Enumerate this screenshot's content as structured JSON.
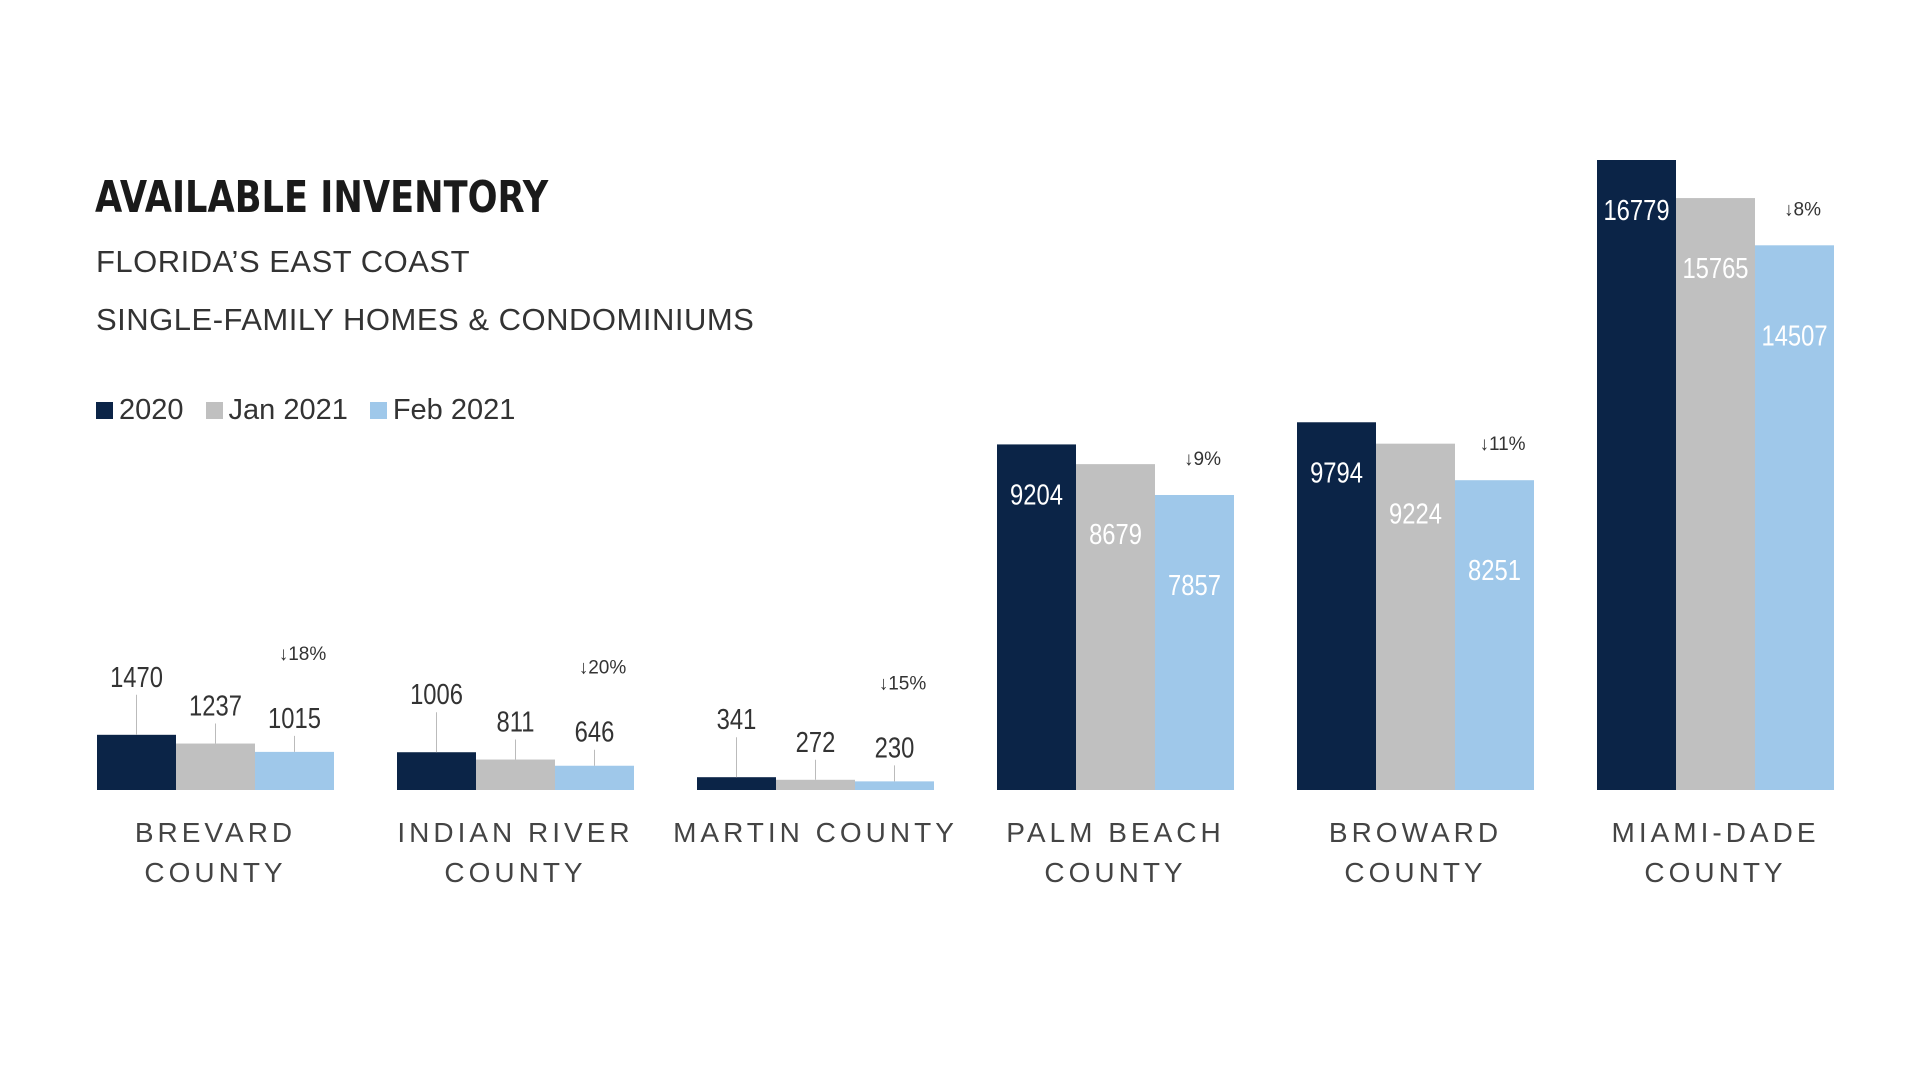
{
  "colors": {
    "series_2020": "#0b2447",
    "series_jan": "#c0c0c0",
    "series_feb": "#9fc8ea",
    "title": "#1a1a1a"
  },
  "header": {
    "title": "AVAILABLE INVENTORY",
    "subtitle_1": "FLORIDA’S EAST COAST",
    "subtitle_2": "SINGLE-FAMILY HOMES & CONDOMINIUMS"
  },
  "chart_data": {
    "type": "bar",
    "title": "AVAILABLE INVENTORY",
    "subtitle": "FLORIDA’S EAST COAST — SINGLE-FAMILY HOMES & CONDOMINIUMS",
    "legend_position": "top-left",
    "categories": [
      [
        "BREVARD",
        "COUNTY"
      ],
      [
        "INDIAN RIVER",
        "COUNTY"
      ],
      [
        "MARTIN COUNTY"
      ],
      [
        "PALM BEACH",
        "COUNTY"
      ],
      [
        "BROWARD",
        "COUNTY"
      ],
      [
        "MIAMI-DADE",
        "COUNTY"
      ]
    ],
    "series": [
      {
        "name": "2020",
        "values": [
          1470,
          1006,
          341,
          9204,
          9794,
          16779
        ]
      },
      {
        "name": "Jan 2021",
        "values": [
          1237,
          811,
          272,
          8679,
          9224,
          15765
        ]
      },
      {
        "name": "Feb 2021",
        "values": [
          1015,
          646,
          230,
          7857,
          8251,
          14507
        ]
      }
    ],
    "changes": [
      "↓18%",
      "↓20%",
      "↓15%",
      "↓9%",
      "↓11%",
      "↓8%"
    ],
    "ylim": [
      0,
      16779
    ],
    "grid": false
  }
}
